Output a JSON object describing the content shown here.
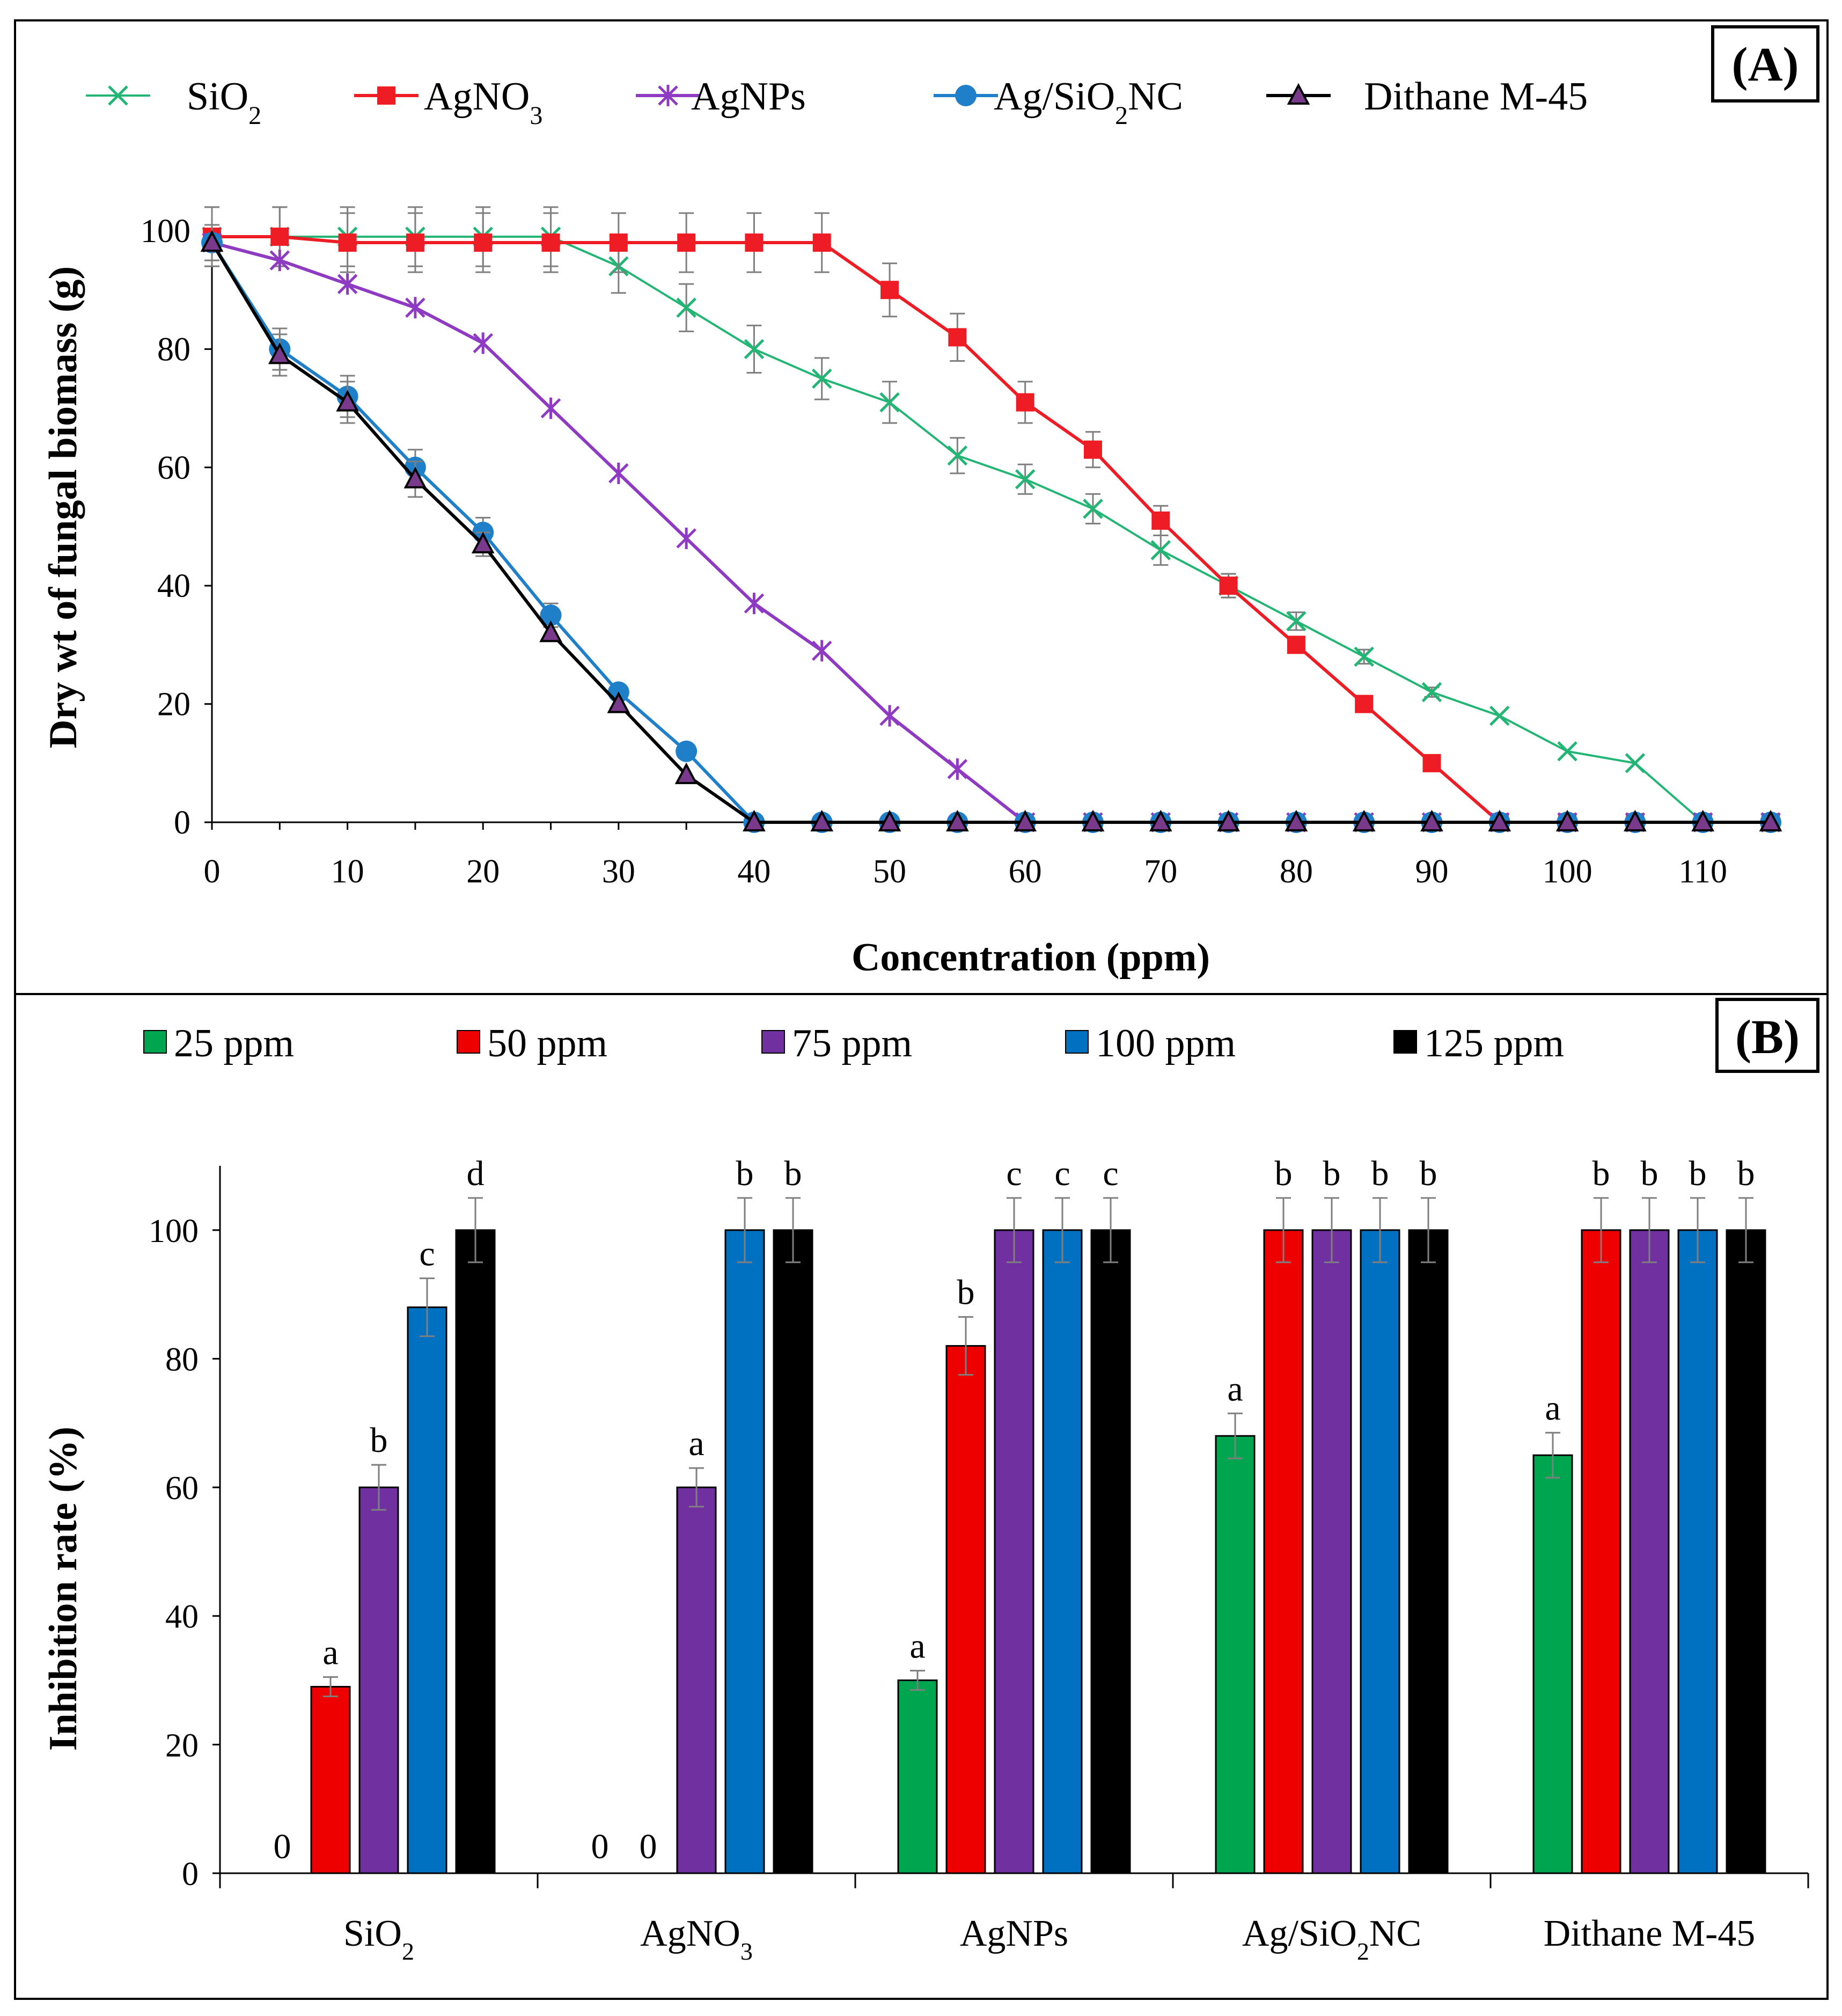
{
  "panel_a": {
    "label": "(A)",
    "legend": [
      {
        "name": "SiO2",
        "parts": [
          {
            "t": "SiO"
          },
          {
            "t": "2",
            "sub": true
          }
        ],
        "color": "#22b573",
        "marker": "x"
      },
      {
        "name": "AgNO3",
        "parts": [
          {
            "t": "AgNO"
          },
          {
            "t": "3",
            "sub": true
          }
        ],
        "color": "#ee1c24",
        "marker": "square"
      },
      {
        "name": "AgNPs",
        "parts": [
          {
            "t": "AgNPs"
          }
        ],
        "color": "#8e3ac2",
        "marker": "star"
      },
      {
        "name": "Ag/SiO2NC",
        "parts": [
          {
            "t": "Ag/SiO"
          },
          {
            "t": "2",
            "sub": true
          },
          {
            "t": "NC"
          }
        ],
        "color": "#1f7fc9",
        "marker": "circle"
      },
      {
        "name": "Dithane M-45",
        "parts": [
          {
            "t": "Dithane M-45"
          }
        ],
        "color": "#000000",
        "marker": "triangle",
        "marker_fill": "#7a3a8c"
      }
    ]
  },
  "panel_b": {
    "label": "(B)",
    "legend": [
      {
        "label": "25 ppm",
        "color": "#00a54f"
      },
      {
        "label": "50 ppm",
        "color": "#ee0000"
      },
      {
        "label": "75 ppm",
        "color": "#7030a0"
      },
      {
        "label": "100 ppm",
        "color": "#0070c0"
      },
      {
        "label": "125 ppm",
        "color": "#000000"
      }
    ],
    "categories": [
      {
        "name": "SiO2",
        "parts": [
          {
            "t": "SiO"
          },
          {
            "t": "2",
            "sub": true
          }
        ]
      },
      {
        "name": "AgNO3",
        "parts": [
          {
            "t": "AgNO"
          },
          {
            "t": "3",
            "sub": true
          }
        ]
      },
      {
        "name": "AgNPs",
        "parts": [
          {
            "t": "AgNPs"
          }
        ]
      },
      {
        "name": "Ag/SiO2NC",
        "parts": [
          {
            "t": "Ag/SiO"
          },
          {
            "t": "2",
            "sub": true
          },
          {
            "t": "NC"
          }
        ]
      },
      {
        "name": "Dithane M-45",
        "parts": [
          {
            "t": "Dithane M-45"
          }
        ]
      }
    ]
  },
  "chart_data": [
    {
      "type": "line",
      "title": "(A)",
      "xlabel": "Concentration (ppm)",
      "ylabel": "Dry wt of fungal biomass (g)",
      "x": [
        0,
        5,
        10,
        15,
        20,
        25,
        30,
        35,
        40,
        45,
        50,
        55,
        60,
        65,
        70,
        75,
        80,
        85,
        90,
        95,
        100,
        105,
        110,
        115
      ],
      "xticks": [
        0,
        10,
        20,
        30,
        40,
        50,
        60,
        70,
        80,
        90,
        100,
        110
      ],
      "xlim": [
        0,
        115
      ],
      "yticks": [
        0,
        20,
        40,
        60,
        80,
        100
      ],
      "ylim": [
        0,
        100
      ],
      "series": [
        {
          "name": "SiO2",
          "values": [
            99,
            99,
            99,
            99,
            99,
            99,
            94,
            87,
            80,
            75,
            71,
            62,
            58,
            53,
            46,
            40,
            34,
            28,
            22,
            18,
            12,
            10,
            0,
            0
          ],
          "errors": [
            5,
            5,
            5,
            5,
            5,
            5,
            4.5,
            4,
            4,
            3.5,
            3.5,
            3,
            2.5,
            2.5,
            2.5,
            2,
            1.5,
            1.2,
            0.8,
            0,
            0,
            0,
            0,
            0
          ]
        },
        {
          "name": "AgNO3",
          "values": [
            99,
            99,
            98,
            98,
            98,
            98,
            98,
            98,
            98,
            98,
            90,
            82,
            71,
            63,
            51,
            40,
            30,
            20,
            10,
            0,
            0,
            0,
            0,
            0
          ],
          "errors": [
            5,
            5,
            5,
            5,
            5,
            5,
            5,
            5,
            5,
            5,
            4.5,
            4,
            3.5,
            3,
            2.5,
            2,
            0,
            0,
            0,
            0,
            0,
            0,
            0,
            0
          ]
        },
        {
          "name": "AgNPs",
          "values": [
            98,
            95,
            91,
            87,
            81,
            70,
            59,
            48,
            37,
            29,
            18,
            9,
            0,
            0,
            0,
            0,
            0,
            0,
            0,
            0,
            0,
            0,
            0,
            0
          ],
          "errors": [
            0,
            0,
            0,
            0,
            0,
            0,
            0,
            0,
            0,
            0,
            0,
            0,
            0,
            0,
            0,
            0,
            0,
            0,
            0,
            0,
            0,
            0,
            0,
            0
          ]
        },
        {
          "name": "Ag/SiO2NC",
          "values": [
            98,
            80,
            72,
            60,
            49,
            35,
            22,
            12,
            0,
            0,
            0,
            0,
            0,
            0,
            0,
            0,
            0,
            0,
            0,
            0,
            0,
            0,
            0,
            0
          ],
          "errors": [
            3,
            3.5,
            3.5,
            3,
            2.5,
            2,
            0,
            0,
            0,
            0,
            0,
            0,
            0,
            0,
            0,
            0,
            0,
            0,
            0,
            0,
            0,
            0,
            0,
            0
          ]
        },
        {
          "name": "Dithane M-45",
          "values": [
            98,
            79,
            71,
            58,
            47,
            32,
            20,
            8,
            0,
            0,
            0,
            0,
            0,
            0,
            0,
            0,
            0,
            0,
            0,
            0,
            0,
            0,
            0,
            0
          ],
          "errors": [
            3,
            3.5,
            3.5,
            3,
            2,
            0,
            0,
            0,
            0,
            0,
            0,
            0,
            0,
            0,
            0,
            0,
            0,
            0,
            0,
            0,
            0,
            0,
            0,
            0
          ]
        }
      ]
    },
    {
      "type": "bar",
      "title": "(B)",
      "xlabel": "",
      "ylabel": "Inhibition rate (%)",
      "categories": [
        "SiO2",
        "AgNO3",
        "AgNPs",
        "Ag/SiO2NC",
        "Dithane M-45"
      ],
      "yticks": [
        0,
        20,
        40,
        60,
        80,
        100
      ],
      "ylim": [
        0,
        110
      ],
      "series": [
        {
          "name": "25 ppm",
          "values": [
            0,
            0,
            30,
            68,
            65
          ],
          "errors": [
            0,
            0,
            1.5,
            3.5,
            3.5
          ],
          "labels": [
            "0",
            "0",
            "a",
            "a",
            "a"
          ]
        },
        {
          "name": "50 ppm",
          "values": [
            29,
            0,
            82,
            100,
            100
          ],
          "errors": [
            1.5,
            0,
            4.5,
            5,
            5
          ],
          "labels": [
            "a",
            "0",
            "b",
            "b",
            "b"
          ]
        },
        {
          "name": "75 ppm",
          "values": [
            60,
            60,
            100,
            100,
            100
          ],
          "errors": [
            3.5,
            3,
            5,
            5,
            5
          ],
          "labels": [
            "b",
            "a",
            "c",
            "b",
            "b"
          ]
        },
        {
          "name": "100 ppm",
          "values": [
            88,
            100,
            100,
            100,
            100
          ],
          "errors": [
            4.5,
            5,
            5,
            5,
            5
          ],
          "labels": [
            "c",
            "b",
            "c",
            "b",
            "b"
          ]
        },
        {
          "name": "125 ppm",
          "values": [
            100,
            100,
            100,
            100,
            100
          ],
          "errors": [
            5,
            5,
            5,
            5,
            5
          ],
          "labels": [
            "d",
            "b",
            "c",
            "b",
            "b"
          ]
        }
      ]
    }
  ]
}
